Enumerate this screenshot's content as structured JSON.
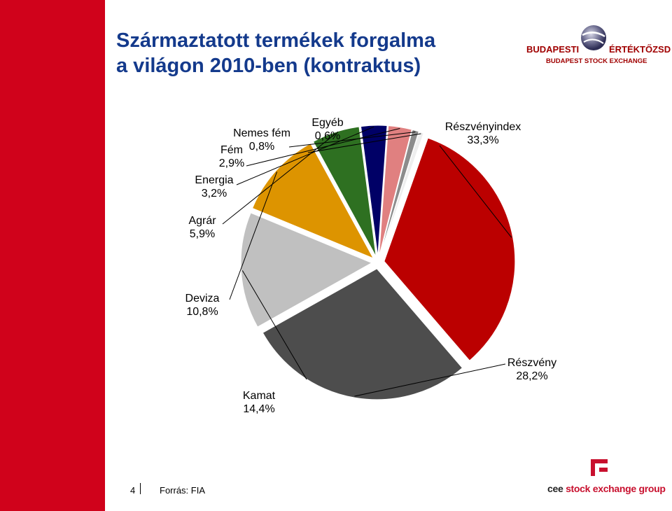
{
  "title": {
    "line1": "Származtatott termékek forgalma",
    "line2": "a világon 2010-ben (kontraktus)"
  },
  "logo": {
    "bse_left": "BUDAPESTI",
    "bse_right": "ÉRTÉKTŐZSDE",
    "bse_sub": "BUDAPEST STOCK EXCHANGE"
  },
  "footer": {
    "page_number": "4",
    "source": "Forrás: FIA",
    "cee_part1": "cee ",
    "cee_part2": "stock exchange group"
  },
  "colors": {
    "sidebar": "#d0021b",
    "title": "#143a8c"
  },
  "chart_data": {
    "type": "pie",
    "title": "",
    "series": [
      {
        "name": "Részvényindex",
        "label": "Részvényindex",
        "value_label": "33,3%",
        "value": 33.3,
        "color": "#bb0000"
      },
      {
        "name": "Részvény",
        "label": "Részvény",
        "value_label": "28,2%",
        "value": 28.2,
        "color": "#4d4d4d"
      },
      {
        "name": "Kamat",
        "label": "Kamat",
        "value_label": "14,4%",
        "value": 14.4,
        "color": "#c0c0c0"
      },
      {
        "name": "Deviza",
        "label": "Deviza",
        "value_label": "10,8%",
        "value": 10.8,
        "color": "#dd9400"
      },
      {
        "name": "Agrár",
        "label": "Agrár",
        "value_label": "5,9%",
        "value": 5.9,
        "color": "#2e7021"
      },
      {
        "name": "Energia",
        "label": "Energia",
        "value_label": "3,2%",
        "value": 3.2,
        "color": "#000066"
      },
      {
        "name": "Fém",
        "label": "Fém",
        "value_label": "2,9%",
        "value": 2.9,
        "color": "#e08080"
      },
      {
        "name": "Nemes fém",
        "label": "Nemes fém",
        "value_label": "0,8%",
        "value": 0.8,
        "color": "#8c8c8c"
      },
      {
        "name": "Egyéb",
        "label": "Egyéb",
        "value_label": "0,6%",
        "value": 0.6,
        "color": "#eeeeee"
      }
    ],
    "legend": "none",
    "exploded": true
  }
}
